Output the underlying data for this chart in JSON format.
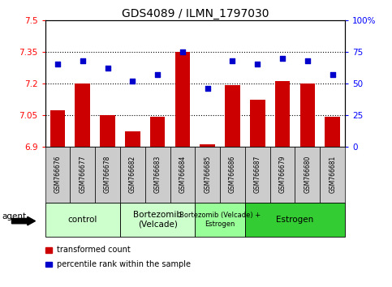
{
  "title": "GDS4089 / ILMN_1797030",
  "samples": [
    "GSM766676",
    "GSM766677",
    "GSM766678",
    "GSM766682",
    "GSM766683",
    "GSM766684",
    "GSM766685",
    "GSM766686",
    "GSM766687",
    "GSM766679",
    "GSM766680",
    "GSM766681"
  ],
  "red_values": [
    7.07,
    7.2,
    7.05,
    6.97,
    7.04,
    7.35,
    6.91,
    7.19,
    7.12,
    7.21,
    7.2,
    7.04
  ],
  "blue_values": [
    65,
    68,
    62,
    52,
    57,
    75,
    46,
    68,
    65,
    70,
    68,
    57
  ],
  "ylim_left": [
    6.9,
    7.5
  ],
  "ylim_right": [
    0,
    100
  ],
  "yticks_left": [
    6.9,
    7.05,
    7.2,
    7.35,
    7.5
  ],
  "yticks_right": [
    0,
    25,
    50,
    75,
    100
  ],
  "ytick_labels_left": [
    "6.9",
    "7.05",
    "7.2",
    "7.35",
    "7.5"
  ],
  "ytick_labels_right": [
    "0",
    "25",
    "50",
    "75",
    "100%"
  ],
  "groups": [
    {
      "label": "control",
      "start": 0,
      "end": 3,
      "color": "#ccffcc"
    },
    {
      "label": "Bortezomib\n(Velcade)",
      "start": 3,
      "end": 6,
      "color": "#ccffcc"
    },
    {
      "label": "Bortezomib (Velcade) +\nEstrogen",
      "start": 6,
      "end": 8,
      "color": "#99ff99"
    },
    {
      "label": "Estrogen",
      "start": 8,
      "end": 12,
      "color": "#33cc33"
    }
  ],
  "bar_color": "#cc0000",
  "square_color": "#0000cc",
  "hline_y": [
    7.05,
    7.2,
    7.35
  ],
  "agent_label": "agent",
  "legend_bar_label": "transformed count",
  "legend_sq_label": "percentile rank within the sample",
  "bg_color": "#ffffff",
  "xticklabel_bg": "#cccccc",
  "group_divider_color": "#006600",
  "title_fontsize": 10,
  "tick_fontsize": 7.5
}
